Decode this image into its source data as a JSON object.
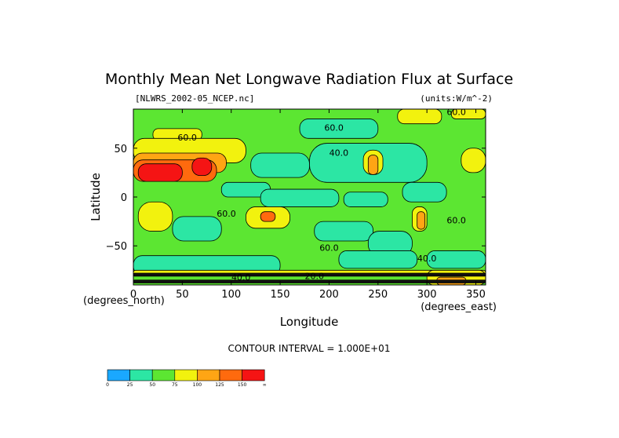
{
  "chart_data": {
    "type": "heatmap",
    "title": "Monthly Mean Net Longwave Radiation Flux at Surface",
    "file_label": "[NLWRS_2002-05_NCEP.nc]",
    "units_label": "(units:W/m^-2)",
    "xlabel": "Longitude",
    "ylabel": "Latitude",
    "x_unit_label": "(degrees_east)",
    "y_unit_label": "(degrees_north)",
    "xlim": [
      0,
      360
    ],
    "ylim": [
      -90,
      90
    ],
    "x_ticks": [
      0,
      50,
      100,
      150,
      200,
      250,
      300,
      350
    ],
    "y_ticks": [
      50,
      0,
      -50
    ],
    "x_tick_labels": [
      "0",
      "50",
      "100",
      "150",
      "200",
      "250",
      "300",
      "350"
    ],
    "y_tick_labels": [
      "50",
      "0",
      "−50"
    ],
    "contour_interval_text": "CONTOUR INTERVAL = 1.000E+01",
    "contour_labels": [
      {
        "text": "60.0",
        "lon": 330,
        "lat": 84
      },
      {
        "text": "60.0",
        "lon": 205,
        "lat": 68
      },
      {
        "text": "40.0",
        "lon": 210,
        "lat": 42
      },
      {
        "text": "60.0",
        "lon": 55,
        "lat": 58
      },
      {
        "text": "60.0",
        "lon": 95,
        "lat": -20
      },
      {
        "text": "60.0",
        "lon": 330,
        "lat": -27
      },
      {
        "text": "60.0",
        "lon": 200,
        "lat": -55
      },
      {
        "text": "40.0",
        "lon": 300,
        "lat": -66
      },
      {
        "text": "40.0",
        "lon": 110,
        "lat": -85
      },
      {
        "text": "20.0",
        "lon": 185,
        "lat": -84
      }
    ],
    "regions": [
      {
        "level": 50,
        "lon": 0,
        "lat": 90,
        "w": 360,
        "h": 180
      },
      {
        "level": 25,
        "lon": 170,
        "lat": 80,
        "w": 80,
        "h": 20
      },
      {
        "level": 25,
        "lon": 180,
        "lat": 55,
        "w": 120,
        "h": 40
      },
      {
        "level": 25,
        "lon": 120,
        "lat": 45,
        "w": 60,
        "h": 25
      },
      {
        "level": 25,
        "lon": 90,
        "lat": 15,
        "w": 50,
        "h": 15
      },
      {
        "level": 25,
        "lon": 130,
        "lat": 8,
        "w": 80,
        "h": 18
      },
      {
        "level": 25,
        "lon": 215,
        "lat": 5,
        "w": 45,
        "h": 15
      },
      {
        "level": 25,
        "lon": 275,
        "lat": 15,
        "w": 45,
        "h": 20
      },
      {
        "level": 25,
        "lon": 40,
        "lat": -20,
        "w": 50,
        "h": 25
      },
      {
        "level": 25,
        "lon": 185,
        "lat": -25,
        "w": 60,
        "h": 20
      },
      {
        "level": 25,
        "lon": 240,
        "lat": -35,
        "w": 45,
        "h": 25
      },
      {
        "level": 25,
        "lon": 0,
        "lat": -60,
        "w": 150,
        "h": 20
      },
      {
        "level": 25,
        "lon": 210,
        "lat": -55,
        "w": 80,
        "h": 18
      },
      {
        "level": 25,
        "lon": 300,
        "lat": -55,
        "w": 60,
        "h": 18
      },
      {
        "level": 75,
        "lon": 270,
        "lat": 90,
        "w": 45,
        "h": 15
      },
      {
        "level": 75,
        "lon": 325,
        "lat": 90,
        "w": 35,
        "h": 10
      },
      {
        "level": 75,
        "lon": 20,
        "lat": 70,
        "w": 50,
        "h": 12
      },
      {
        "level": 75,
        "lon": 0,
        "lat": 60,
        "w": 115,
        "h": 25
      },
      {
        "level": 75,
        "lon": 235,
        "lat": 48,
        "w": 20,
        "h": 25
      },
      {
        "level": 75,
        "lon": 335,
        "lat": 50,
        "w": 25,
        "h": 25
      },
      {
        "level": 75,
        "lon": 5,
        "lat": -5,
        "w": 35,
        "h": 30
      },
      {
        "level": 75,
        "lon": 115,
        "lat": -10,
        "w": 45,
        "h": 22
      },
      {
        "level": 75,
        "lon": 285,
        "lat": -10,
        "w": 15,
        "h": 25
      },
      {
        "level": 75,
        "lon": 0,
        "lat": -75,
        "w": 360,
        "h": 5
      },
      {
        "level": 75,
        "lon": 300,
        "lat": -75,
        "w": 60,
        "h": 15
      },
      {
        "level": 100,
        "lon": 0,
        "lat": 45,
        "w": 95,
        "h": 20
      },
      {
        "level": 100,
        "lon": 240,
        "lat": 43,
        "w": 10,
        "h": 20
      },
      {
        "level": 100,
        "lon": 290,
        "lat": -15,
        "w": 8,
        "h": 18
      },
      {
        "level": 100,
        "lon": 310,
        "lat": -82,
        "w": 30,
        "h": 8
      },
      {
        "level": 125,
        "lon": 0,
        "lat": 38,
        "w": 85,
        "h": 22
      },
      {
        "level": 125,
        "lon": 130,
        "lat": -15,
        "w": 15,
        "h": 10
      },
      {
        "level": 150,
        "lon": 5,
        "lat": 34,
        "w": 45,
        "h": 18
      },
      {
        "level": 150,
        "lon": 60,
        "lat": 40,
        "w": 20,
        "h": 18
      },
      {
        "level": 999,
        "lon": 0,
        "lat": -78,
        "w": 360,
        "h": 3
      },
      {
        "level": 999,
        "lon": 0,
        "lat": -85,
        "w": 360,
        "h": 3
      }
    ],
    "colorbar": {
      "levels": [
        "0",
        "25",
        "50",
        "75",
        "100",
        "125",
        "150",
        "∞"
      ],
      "colors": [
        "#1aa8ff",
        "#2ce6a4",
        "#5ce632",
        "#f2f20e",
        "#ffa514",
        "#ff6a0e",
        "#f51414"
      ]
    },
    "fill_colors": {
      "25": "#2ce6a4",
      "50": "#5ce632",
      "75": "#f2f20e",
      "100": "#ffa514",
      "125": "#ff6a0e",
      "150": "#f51414",
      "999": "#101010"
    }
  }
}
